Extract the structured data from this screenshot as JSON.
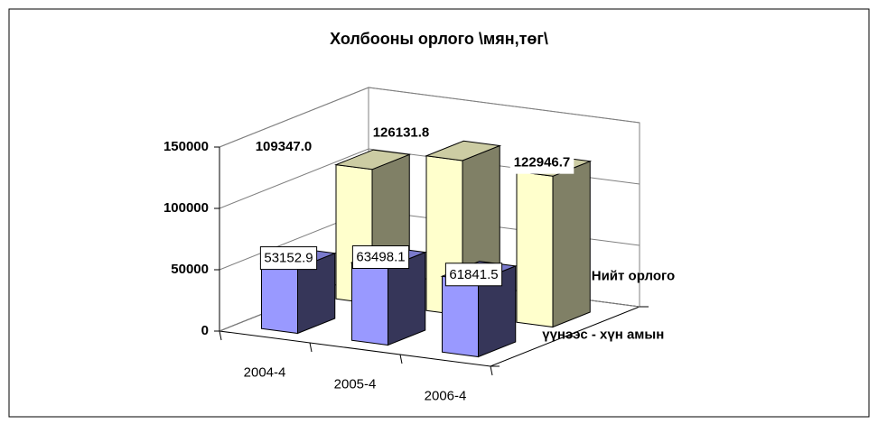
{
  "chart_data": {
    "type": "bar3d",
    "title": "Холбооны орлого \\мян,төг\\",
    "categories": [
      "2004-4",
      "2005-4",
      "2006-4"
    ],
    "series": [
      {
        "name": "Нийт орлого",
        "color": "#ffffcc",
        "values": [
          109347.0,
          126131.8,
          122946.7
        ],
        "value_labels": [
          "109347.0",
          "126131.8",
          "122946.7"
        ]
      },
      {
        "name": "үүнээс - хүн амын",
        "color": "#9999ff",
        "values": [
          53152.9,
          63498.1,
          61841.5
        ]
      }
    ],
    "ylim": [
      0,
      150000
    ],
    "yticks": [
      0,
      50000,
      100000,
      150000
    ],
    "grid": true
  }
}
